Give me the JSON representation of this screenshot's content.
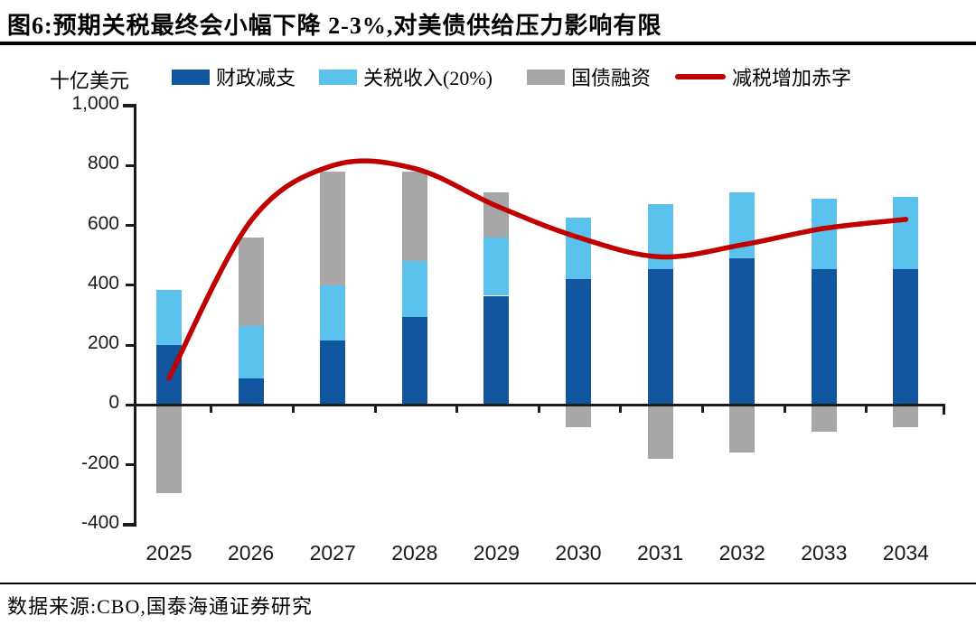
{
  "header": {
    "title": "图6:预期关税最终会小幅下降 2-3%,对美债供给压力影响有限"
  },
  "footer": {
    "source": "数据来源:CBO,国泰海通证券研究"
  },
  "chart_data": {
    "type": "bar",
    "subtype": "stacked-bars-with-smoothed-line-overlay",
    "title": "图6:预期关税最终会小幅下降 2-3%,对美债供给压力影响有限",
    "unit_label": "十亿美元",
    "categories": [
      "2025",
      "2026",
      "2027",
      "2028",
      "2029",
      "2030",
      "2031",
      "2032",
      "2033",
      "2034"
    ],
    "series": [
      {
        "name": "财政减支",
        "type": "bar",
        "color": "#10559E",
        "values": [
          200,
          90,
          215,
          295,
          365,
          420,
          455,
          490,
          455,
          455
        ]
      },
      {
        "name": "关税收入(20%)",
        "type": "bar",
        "color": "#5BC2EE",
        "values": [
          185,
          175,
          185,
          185,
          195,
          205,
          215,
          220,
          235,
          240
        ]
      },
      {
        "name": "国债融资",
        "type": "bar",
        "color": "#A7A7A7",
        "values": [
          -295,
          295,
          380,
          300,
          150,
          -75,
          -180,
          -160,
          -90,
          -75
        ]
      },
      {
        "name": "减税增加赤字",
        "type": "line",
        "color": "#C00000",
        "values": [
          90,
          615,
          800,
          790,
          665,
          560,
          495,
          535,
          590,
          620
        ]
      }
    ],
    "stacking": "国债融资 stacks above positive bars when positive, hangs below zero axis when negative",
    "ylim": [
      -400,
      1000
    ],
    "ytick_step": 200,
    "ytick_labels": [
      "1,000",
      "800",
      "600",
      "400",
      "200",
      "0",
      "-200",
      "-400"
    ],
    "grid": false,
    "legend_position": "top",
    "axis_color": "#1a1a1a"
  }
}
